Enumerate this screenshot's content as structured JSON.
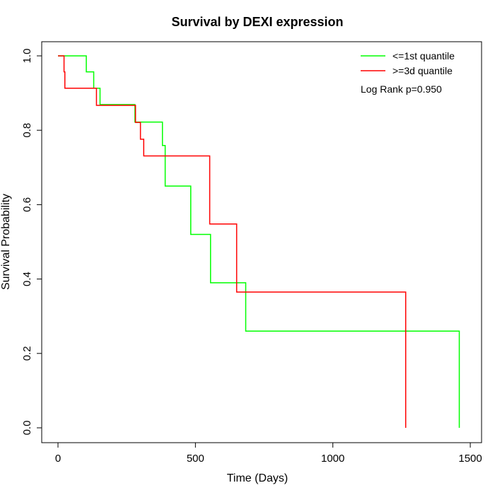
{
  "chart_data": {
    "type": "line",
    "step": true,
    "title": "Survival by DEXI expression",
    "xlabel": "Time (Days)",
    "ylabel": "Survival Probability",
    "xlim": [
      0,
      1500
    ],
    "ylim": [
      0,
      1
    ],
    "xticks": [
      0,
      500,
      1000,
      1500
    ],
    "yticks": [
      0.0,
      0.2,
      0.4,
      0.6,
      0.8,
      1.0
    ],
    "xtick_labels": [
      "0",
      "500",
      "1000",
      "1500"
    ],
    "ytick_labels": [
      "0.0",
      "0.2",
      "0.4",
      "0.6",
      "0.8",
      "1.0"
    ],
    "legend_position": "top-right",
    "annotation": "Log Rank p=0.950",
    "series": [
      {
        "name": "<=1st quantile",
        "color": "#00ff00",
        "x": [
          0,
          103,
          130,
          153,
          280,
          380,
          390,
          483,
          555,
          683,
          1460
        ],
        "y": [
          1.0,
          0.957,
          0.913,
          0.869,
          0.822,
          0.759,
          0.65,
          0.52,
          0.39,
          0.26,
          0.0
        ]
      },
      {
        "name": ">=3d quantile",
        "color": "#ff0000",
        "x": [
          0,
          22,
          25,
          140,
          282,
          300,
          312,
          552,
          650,
          1265
        ],
        "y": [
          1.0,
          0.957,
          0.913,
          0.867,
          0.821,
          0.776,
          0.731,
          0.548,
          0.365,
          0.0
        ]
      }
    ]
  }
}
